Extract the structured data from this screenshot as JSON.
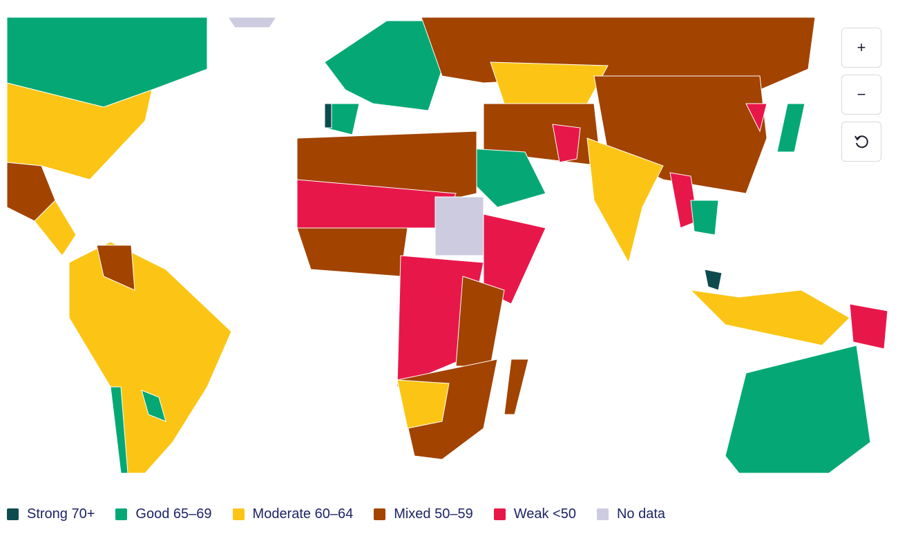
{
  "zoom_controls": {
    "zoom_in": "+",
    "zoom_out": "−"
  },
  "legend": [
    {
      "label": "Strong 70+",
      "color": "#0e4b4f"
    },
    {
      "label": "Good 65–69",
      "color": "#05a874"
    },
    {
      "label": "Moderate 60–64",
      "color": "#fcc515"
    },
    {
      "label": "Mixed 50–59",
      "color": "#a24300"
    },
    {
      "label": "Weak <50",
      "color": "#e8174a"
    },
    {
      "label": "No data",
      "color": "#cdcbe0"
    }
  ]
}
